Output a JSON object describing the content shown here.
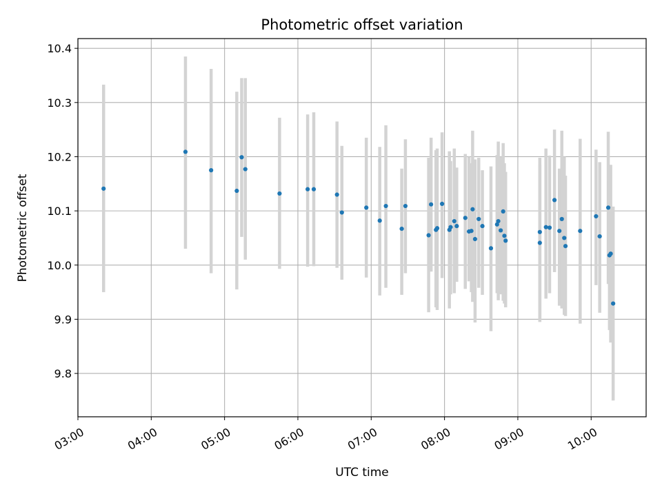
{
  "chart_data": {
    "type": "scatter",
    "title": "Photometric offset variation",
    "xlabel": "UTC time",
    "ylabel": "Photometric offset",
    "xlim": [
      "03:00",
      "10:45"
    ],
    "ylim": [
      9.72,
      10.418
    ],
    "x_ticks": [
      "03:00",
      "04:00",
      "05:00",
      "06:00",
      "07:00",
      "08:00",
      "09:00",
      "10:00"
    ],
    "y_ticks": [
      "9.8",
      "9.9",
      "10.0",
      "10.1",
      "10.2",
      "10.3",
      "10.4"
    ],
    "grid": true,
    "colors": {
      "point": "#1f77b4",
      "errorbar": "#d3d3d3",
      "grid": "#b0b0b0"
    },
    "series": [
      {
        "x": [
          "03:21",
          "04:28",
          "04:49",
          "05:10",
          "05:14",
          "05:17",
          "05:45",
          "06:08",
          "06:13",
          "06:32",
          "06:36",
          "06:56",
          "07:07",
          "07:12",
          "07:25",
          "07:28",
          "07:47",
          "07:49",
          "07:53",
          "07:54",
          "07:58",
          "08:04",
          "08:05",
          "08:08",
          "08:10",
          "08:17",
          "08:20",
          "08:22",
          "08:23",
          "08:25",
          "08:28",
          "08:31",
          "08:38",
          "08:43",
          "08:44",
          "08:46",
          "08:48",
          "08:49",
          "08:50",
          "09:18",
          "09:18",
          "09:23",
          "09:26",
          "09:30",
          "09:34",
          "09:36",
          "09:38",
          "09:39",
          "09:51",
          "10:04",
          "10:07",
          "10:14",
          "10:15",
          "10:16",
          "10:18"
        ],
        "y": [
          10.141,
          10.209,
          10.175,
          10.137,
          10.199,
          10.177,
          10.132,
          10.14,
          10.14,
          10.13,
          10.097,
          10.106,
          10.082,
          10.109,
          10.067,
          10.109,
          10.055,
          10.112,
          10.065,
          10.068,
          10.113,
          10.065,
          10.07,
          10.081,
          10.072,
          10.087,
          10.062,
          10.063,
          10.103,
          10.048,
          10.085,
          10.072,
          10.031,
          10.075,
          10.081,
          10.064,
          10.099,
          10.054,
          10.045,
          10.061,
          10.041,
          10.07,
          10.069,
          10.12,
          10.063,
          10.085,
          10.05,
          10.035,
          10.063,
          10.09,
          10.053,
          10.106,
          10.018,
          10.021,
          9.929
        ],
        "y_err_low": [
          9.95,
          10.03,
          9.985,
          9.955,
          10.052,
          10.01,
          9.993,
          9.997,
          9.998,
          9.995,
          9.973,
          9.977,
          9.944,
          9.958,
          9.945,
          9.985,
          9.913,
          9.988,
          9.922,
          9.917,
          9.976,
          9.92,
          9.946,
          9.948,
          9.969,
          9.956,
          9.97,
          9.95,
          9.932,
          9.894,
          9.958,
          9.945,
          9.878,
          9.948,
          9.935,
          9.946,
          9.934,
          9.929,
          9.922,
          9.895,
          9.897,
          9.938,
          9.948,
          9.987,
          9.925,
          9.92,
          9.908,
          9.906,
          9.892,
          9.963,
          9.912,
          9.965,
          9.88,
          9.857,
          9.75
        ],
        "y_err_high": [
          10.333,
          10.385,
          10.362,
          10.32,
          10.345,
          10.345,
          10.272,
          10.278,
          10.282,
          10.265,
          10.22,
          10.235,
          10.218,
          10.258,
          10.178,
          10.232,
          10.198,
          10.235,
          10.212,
          10.215,
          10.245,
          10.21,
          10.192,
          10.215,
          10.18,
          10.205,
          10.2,
          10.188,
          10.248,
          10.195,
          10.198,
          10.175,
          10.182,
          10.203,
          10.228,
          10.2,
          10.225,
          10.188,
          10.172,
          10.198,
          10.185,
          10.215,
          10.202,
          10.25,
          10.178,
          10.248,
          10.2,
          10.165,
          10.233,
          10.213,
          10.19,
          10.246,
          10.155,
          10.185,
          10.108
        ]
      }
    ]
  }
}
